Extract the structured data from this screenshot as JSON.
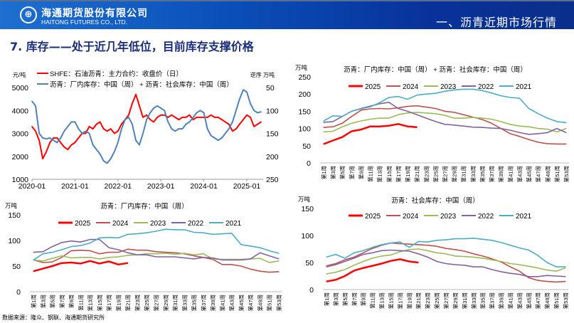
{
  "header": {
    "company_cn": "海通期货股份有限公司",
    "company_en": "HAITONG FUTURES CO., LTD.",
    "section": "一、沥青近期市场行情",
    "logo_icon": "haitong-logo-icon"
  },
  "page_title": "7. 库存——处于近几年低位，目前库存支撑价格",
  "source": "数据来源：隆众、钢联、海通期货研究所",
  "colors": {
    "2025": "#ff0000",
    "2024": "#c0504d",
    "2023": "#9bbb59",
    "2022": "#8064a2",
    "2021": "#4bacc6",
    "price": "#ff0000",
    "inventory": "#4f81bd"
  },
  "chart_data": [
    {
      "type": "line",
      "id": "price-vs-inventory",
      "left_unit": "元/吨",
      "right_unit": "逆序 万吨",
      "legend": [
        "SHFE：石油沥青：主力合约：收盘价（日）",
        "沥青：厂内库存：中国（周） + 沥青：社会库存：中国（周）"
      ],
      "x_ticks": [
        "2020-01",
        "2021-01",
        "2022-01",
        "2023-01",
        "2024-01",
        "2025-01"
      ],
      "x_start": "2020-01",
      "x_end": "2025-05",
      "y_left": {
        "ticks": [
          1000,
          2000,
          3000,
          4000,
          5000
        ],
        "range": [
          1000,
          5000
        ]
      },
      "y_right": {
        "ticks": [
          50,
          100,
          150,
          200,
          250
        ],
        "range": [
          50,
          250
        ],
        "reversed": true
      },
      "series": [
        {
          "name": "SHFE：石油沥青：主力合约：收盘价（日）",
          "axis": "left",
          "color": "#ff0000",
          "values": [
            3300,
            3100,
            2700,
            1900,
            2200,
            2600,
            2800,
            2800,
            2600,
            2400,
            2300,
            2500,
            2600,
            2800,
            3000,
            3000,
            3300,
            3200,
            3400,
            3500,
            3200,
            3100,
            3200,
            3000,
            3100,
            3400,
            3600,
            3800,
            4300,
            4700,
            4200,
            3700,
            3800,
            3600,
            3500,
            3700,
            3800,
            3800,
            3700,
            3800,
            3700,
            3600,
            3700,
            3700,
            3800,
            3600,
            3700,
            3700,
            3700,
            3700,
            3800,
            3700,
            3700,
            3600,
            3500,
            3400,
            3100,
            3200,
            3400,
            3600,
            3800,
            3700,
            3300,
            3400,
            3500
          ]
        },
        {
          "name": "沥青：厂内库存：中国（周） + 沥青：社会库存：中国（周）",
          "axis": "right",
          "color": "#4f81bd",
          "values": [
            80,
            90,
            150,
            160,
            162,
            160,
            165,
            170,
            160,
            145,
            135,
            125,
            125,
            140,
            150,
            145,
            150,
            175,
            185,
            195,
            210,
            215,
            205,
            190,
            170,
            140,
            120,
            115,
            130,
            165,
            175,
            150,
            120,
            105,
            95,
            90,
            95,
            100,
            125,
            140,
            145,
            140,
            140,
            130,
            125,
            115,
            105,
            100,
            105,
            140,
            155,
            160,
            165,
            160,
            150,
            140,
            125,
            100,
            75,
            55,
            60,
            85,
            100,
            105,
            103
          ]
        }
      ]
    },
    {
      "type": "line",
      "id": "total-inventory",
      "title": "沥青：厂内库存：中国（周） + 沥青：社会库存：中国（周）",
      "unit": "万吨",
      "y_ticks": [
        0,
        50,
        100,
        150,
        200,
        250
      ],
      "ylim": [
        0,
        250
      ],
      "x_weeks_step": 2,
      "series": [
        {
          "name": "2025",
          "values": [
            55,
            65,
            75,
            92,
            97,
            106,
            106,
            108,
            113,
            106,
            104
          ]
        },
        {
          "name": "2024",
          "values": [
            103,
            105,
            115,
            135,
            153,
            157,
            158,
            157,
            160,
            164,
            166,
            162,
            158,
            150,
            147,
            140,
            133,
            126,
            115,
            100,
            85,
            77,
            68,
            60,
            56,
            55,
            55
          ]
        },
        {
          "name": "2023",
          "values": [
            90,
            92,
            105,
            115,
            122,
            127,
            130,
            130,
            140,
            145,
            147,
            145,
            143,
            138,
            130,
            130,
            132,
            130,
            127,
            120,
            112,
            107,
            105,
            100,
            98,
            90,
            100
          ]
        },
        {
          "name": "2022",
          "values": [
            118,
            120,
            135,
            150,
            158,
            165,
            172,
            176,
            158,
            150,
            140,
            130,
            120,
            112,
            110,
            107,
            104,
            103,
            101,
            100,
            95,
            88,
            83,
            85,
            88,
            100,
            88
          ]
        },
        {
          "name": "2021",
          "values": [
            122,
            137,
            135,
            150,
            157,
            163,
            175,
            190,
            193,
            185,
            197,
            200,
            202,
            208,
            212,
            214,
            214,
            210,
            203,
            195,
            190,
            188,
            158,
            143,
            130,
            120,
            117
          ]
        }
      ]
    },
    {
      "type": "line",
      "id": "factory-inventory",
      "title": "沥青：厂内库存：中国（周）",
      "unit": "万吨",
      "y_ticks": [
        0,
        50,
        100,
        150
      ],
      "ylim": [
        0,
        150
      ],
      "x_weeks_step": 2,
      "series": [
        {
          "name": "2025",
          "values": [
            40,
            45,
            50,
            56,
            57,
            55,
            60,
            55,
            59,
            53,
            56
          ]
        },
        {
          "name": "2024",
          "values": [
            62,
            57,
            58,
            67,
            80,
            81,
            80,
            74,
            77,
            77,
            83,
            81,
            81,
            78,
            77,
            76,
            74,
            70,
            67,
            63,
            53,
            53,
            50,
            44,
            40,
            38,
            39
          ]
        },
        {
          "name": "2023",
          "values": [
            62,
            60,
            65,
            70,
            66,
            67,
            67,
            64,
            67,
            68,
            71,
            72,
            74,
            74,
            75,
            73,
            75,
            72,
            74,
            64,
            63,
            63,
            63,
            64,
            65,
            57,
            60
          ]
        },
        {
          "name": "2022",
          "values": [
            77,
            78,
            88,
            96,
            99,
            97,
            102,
            102,
            86,
            82,
            76,
            72,
            72,
            68,
            68,
            68,
            66,
            64,
            67,
            66,
            62,
            62,
            62,
            64,
            76,
            70,
            64
          ]
        },
        {
          "name": "2021",
          "values": [
            62,
            74,
            77,
            82,
            88,
            90,
            95,
            105,
            106,
            105,
            112,
            113,
            115,
            118,
            122,
            121,
            121,
            116,
            115,
            112,
            113,
            114,
            92,
            89,
            86,
            80,
            75
          ]
        }
      ]
    },
    {
      "type": "line",
      "id": "social-inventory",
      "title": "沥青：社会库存：中国（周）",
      "unit": "万吨",
      "y_ticks": [
        0,
        50,
        100,
        150
      ],
      "ylim": [
        0,
        150
      ],
      "x_weeks_step": 2,
      "series": [
        {
          "name": "2025",
          "values": [
            15,
            18,
            25,
            35,
            40,
            44,
            48,
            53,
            56,
            52,
            50
          ]
        },
        {
          "name": "2024",
          "values": [
            44,
            48,
            55,
            60,
            68,
            76,
            82,
            86,
            85,
            84,
            83,
            82,
            80,
            76,
            74,
            71,
            66,
            62,
            57,
            51,
            42,
            34,
            22,
            17,
            15,
            14,
            15
          ]
        },
        {
          "name": "2023",
          "values": [
            29,
            32,
            37,
            45,
            52,
            58,
            62,
            64,
            70,
            74,
            75,
            72,
            68,
            66,
            62,
            61,
            60,
            58,
            55,
            52,
            48,
            46,
            43,
            40,
            36,
            34,
            40
          ]
        },
        {
          "name": "2022",
          "values": [
            42,
            46,
            52,
            58,
            65,
            68,
            72,
            73,
            72,
            71,
            66,
            60,
            52,
            48,
            46,
            45,
            42,
            42,
            37,
            33,
            30,
            28,
            24,
            24,
            26,
            25,
            24
          ]
        },
        {
          "name": "2021",
          "values": [
            60,
            65,
            58,
            68,
            72,
            78,
            83,
            86,
            88,
            78,
            89,
            88,
            91,
            92,
            94,
            94,
            95,
            93,
            91,
            87,
            82,
            77,
            73,
            63,
            50,
            42,
            42
          ]
        }
      ]
    }
  ],
  "week_labels": [
    "第1周",
    "第3周",
    "第5周",
    "第7周",
    "第9周",
    "第11周",
    "第13周",
    "第15周",
    "第17周",
    "第19周",
    "第21周",
    "第23周",
    "第25周",
    "第27周",
    "第29周",
    "第31周",
    "第33周",
    "第35周",
    "第37周",
    "第39周",
    "第41周",
    "第43周",
    "第45周",
    "第47周",
    "第49周",
    "第51周",
    "第53周"
  ]
}
